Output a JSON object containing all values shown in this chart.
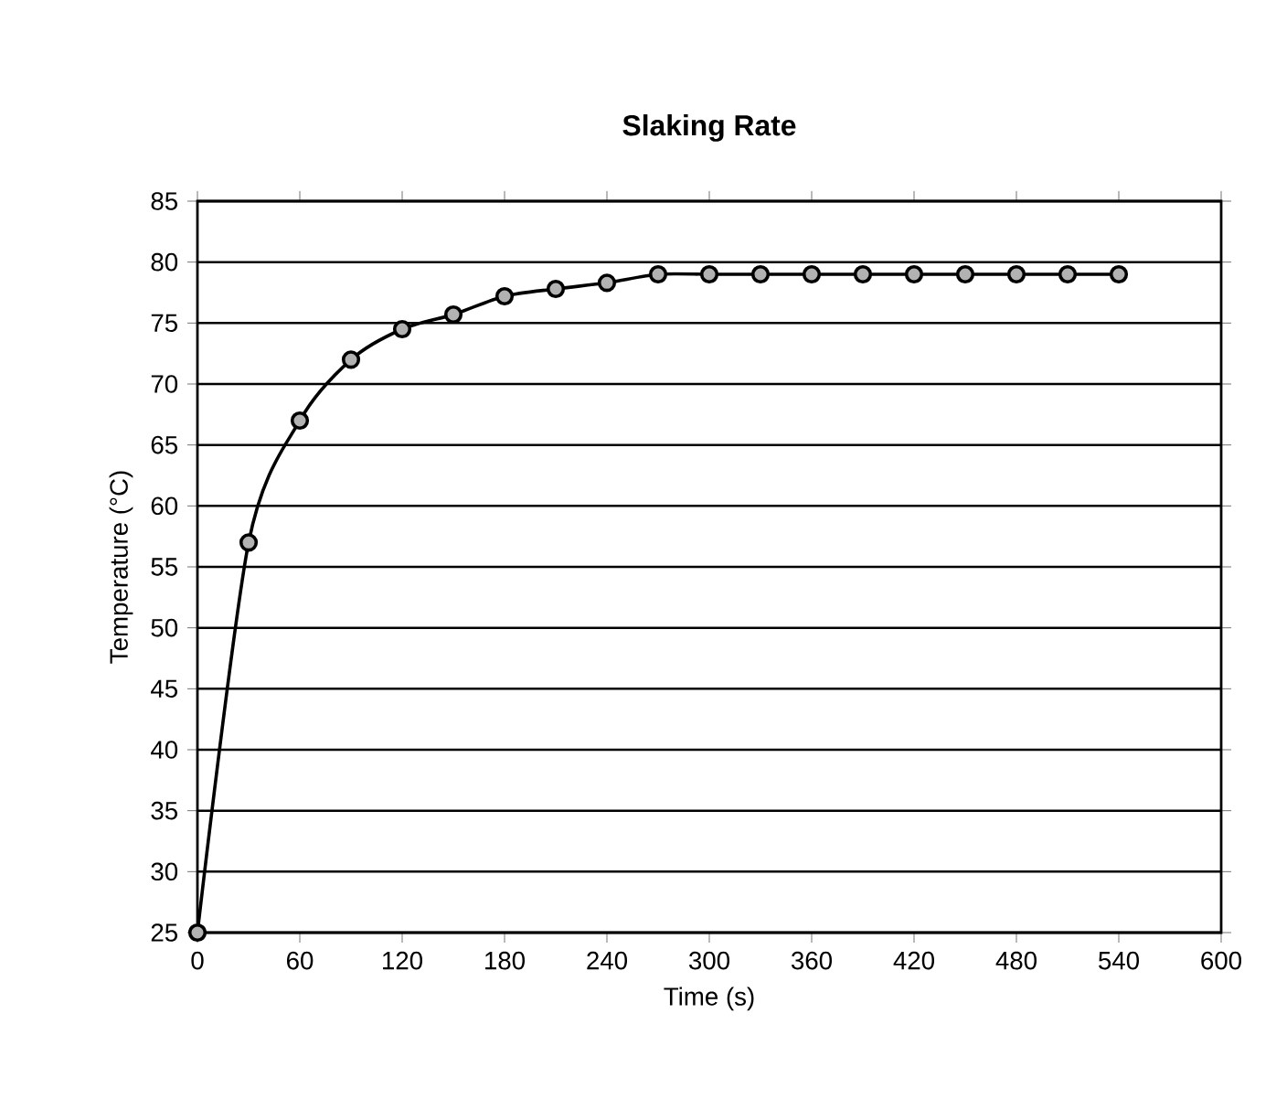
{
  "chart_data": {
    "type": "line",
    "title": "Slaking Rate",
    "xlabel": "Time (s)",
    "ylabel": "Temperature (°C)",
    "x": [
      0,
      30,
      60,
      90,
      120,
      150,
      180,
      210,
      240,
      270,
      300,
      330,
      360,
      390,
      420,
      450,
      480,
      510,
      540
    ],
    "series": [
      {
        "color": "#000000",
        "values": [
          25,
          57,
          67,
          72,
          74.5,
          75.7,
          77.2,
          77.8,
          78.3,
          79,
          79,
          79,
          79,
          79,
          79,
          79,
          79,
          79,
          79
        ]
      }
    ],
    "xlim": [
      0,
      600
    ],
    "ylim": [
      25,
      85
    ],
    "xticks": [
      0,
      60,
      120,
      180,
      240,
      300,
      360,
      420,
      480,
      540,
      600
    ],
    "yticks": [
      25,
      30,
      35,
      40,
      45,
      50,
      55,
      60,
      65,
      70,
      75,
      80,
      85
    ],
    "grid": "y",
    "marker": "circle",
    "line_style": "solid"
  }
}
